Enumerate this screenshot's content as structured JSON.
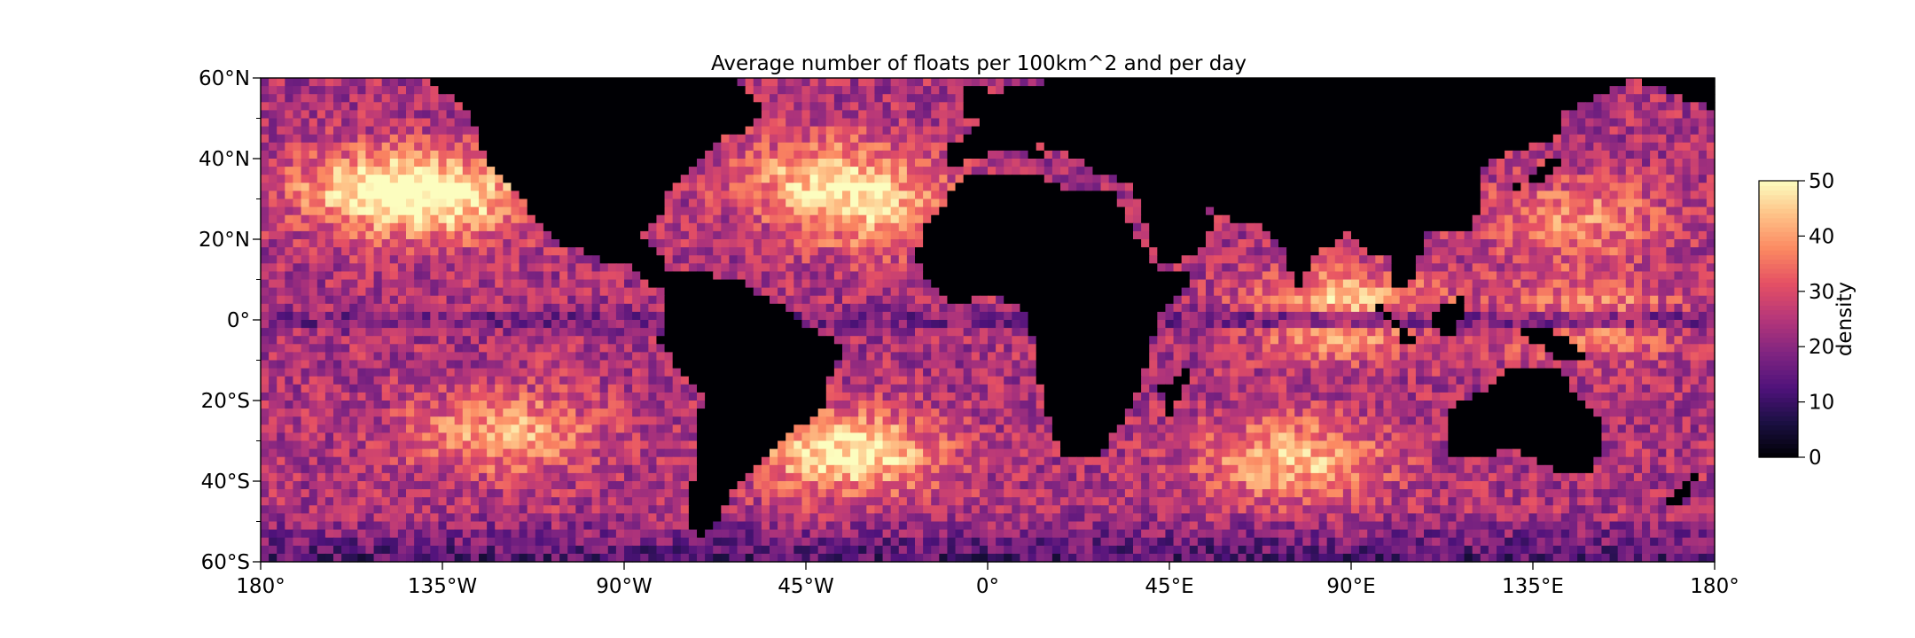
{
  "chart_data": {
    "type": "heatmap",
    "title": "Average number of floats per 100km^2 and per day",
    "projection": "plate-carree",
    "xlabel": "",
    "ylabel": "",
    "xlim": [
      -180,
      180
    ],
    "ylim": [
      -60,
      60
    ],
    "x_ticks": [
      {
        "value": -180,
        "label": "180°"
      },
      {
        "value": -135,
        "label": "135°W"
      },
      {
        "value": -90,
        "label": "90°W"
      },
      {
        "value": -45,
        "label": "45°W"
      },
      {
        "value": 0,
        "label": "0°"
      },
      {
        "value": 45,
        "label": "45°E"
      },
      {
        "value": 90,
        "label": "90°E"
      },
      {
        "value": 135,
        "label": "135°E"
      },
      {
        "value": 180,
        "label": "180°"
      }
    ],
    "y_ticks": [
      {
        "value": 60,
        "label": "60°N"
      },
      {
        "value": 40,
        "label": "40°N"
      },
      {
        "value": 20,
        "label": "20°N"
      },
      {
        "value": 0,
        "label": "0°"
      },
      {
        "value": -20,
        "label": "20°S"
      },
      {
        "value": -40,
        "label": "40°S"
      },
      {
        "value": -60,
        "label": "60°S"
      }
    ],
    "colorbar": {
      "label": "density",
      "colormap": "magma",
      "range": [
        0,
        50
      ],
      "ticks": [
        {
          "value": 0,
          "label": "0"
        },
        {
          "value": 10,
          "label": "10"
        },
        {
          "value": 20,
          "label": "20"
        },
        {
          "value": 30,
          "label": "30"
        },
        {
          "value": 40,
          "label": "40"
        },
        {
          "value": 50,
          "label": "50"
        }
      ]
    },
    "grid": false,
    "land_value": 0,
    "hotspots": [
      {
        "lon": -150,
        "lat": 32,
        "value": 48
      },
      {
        "lon": -130,
        "lat": 30,
        "value": 40
      },
      {
        "lon": -40,
        "lat": 35,
        "value": 44
      },
      {
        "lon": -25,
        "lat": 25,
        "value": 38
      },
      {
        "lon": -35,
        "lat": -33,
        "value": 50
      },
      {
        "lon": -120,
        "lat": -28,
        "value": 42
      },
      {
        "lon": 75,
        "lat": -35,
        "value": 44
      },
      {
        "lon": 88,
        "lat": 2,
        "value": 48
      },
      {
        "lon": 145,
        "lat": 25,
        "value": 38
      },
      {
        "lon": 150,
        "lat": 0,
        "value": 40
      }
    ],
    "equatorial_low": {
      "lat": 0,
      "value": 17
    }
  }
}
